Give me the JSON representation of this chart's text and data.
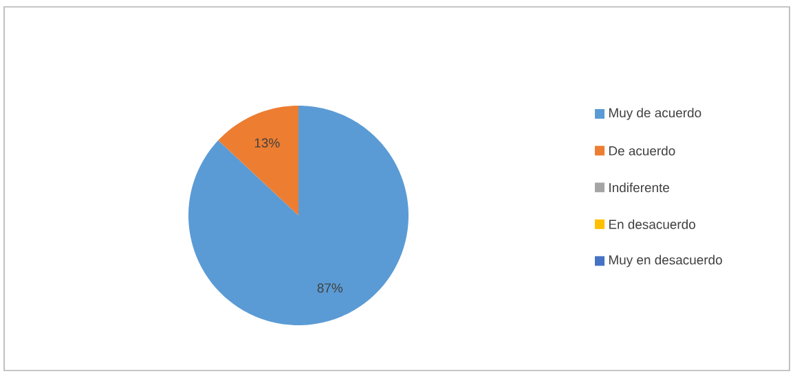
{
  "chart_data": {
    "type": "pie",
    "categories": [
      "Muy  de acuerdo",
      "De acuerdo",
      "Indiferente",
      "En desacuerdo",
      "Muy en desacuerdo"
    ],
    "values": [
      87,
      13,
      0,
      0,
      0
    ],
    "colors": [
      "#5b9bd5",
      "#ed7d31",
      "#a5a5a5",
      "#ffc000",
      "#4472c4"
    ],
    "value_labels": [
      "87%",
      "13%",
      null,
      null,
      null
    ],
    "legend": "right"
  }
}
